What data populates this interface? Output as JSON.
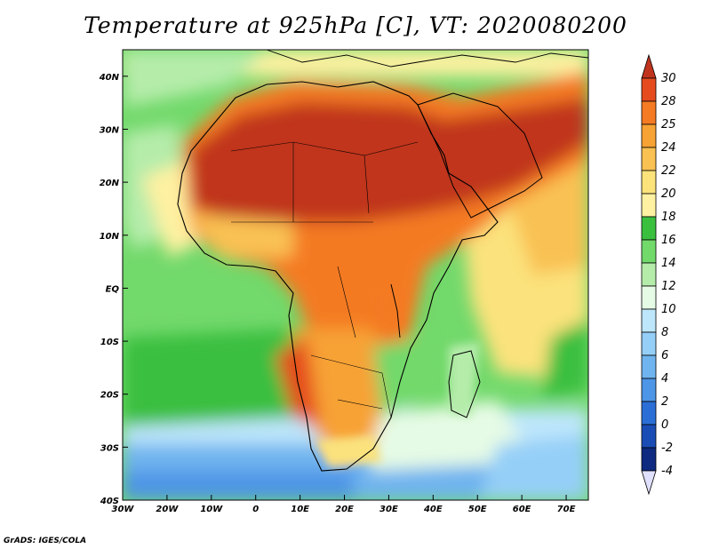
{
  "title": "Temperature at 925hPa [C], VT: 2020080200",
  "footer": "GrADS: IGES/COLA",
  "map": {
    "lon_range": [
      -30,
      75
    ],
    "lat_range": [
      -40,
      45
    ],
    "x_ticks": [
      {
        "lon": -30,
        "label": "30W"
      },
      {
        "lon": -20,
        "label": "20W"
      },
      {
        "lon": -10,
        "label": "10W"
      },
      {
        "lon": 0,
        "label": "0"
      },
      {
        "lon": 10,
        "label": "10E"
      },
      {
        "lon": 20,
        "label": "20E"
      },
      {
        "lon": 30,
        "label": "30E"
      },
      {
        "lon": 40,
        "label": "40E"
      },
      {
        "lon": 50,
        "label": "50E"
      },
      {
        "lon": 60,
        "label": "60E"
      },
      {
        "lon": 70,
        "label": "70E"
      }
    ],
    "y_ticks": [
      {
        "lat": 40,
        "label": "40N"
      },
      {
        "lat": 30,
        "label": "30N"
      },
      {
        "lat": 20,
        "label": "20N"
      },
      {
        "lat": 10,
        "label": "10N"
      },
      {
        "lat": 0,
        "label": "EQ"
      },
      {
        "lat": -10,
        "label": "10S"
      },
      {
        "lat": -20,
        "label": "20S"
      },
      {
        "lat": -30,
        "label": "30S"
      },
      {
        "lat": -40,
        "label": "40S"
      }
    ]
  },
  "colorbar": {
    "labels": [
      "30",
      "28",
      "25",
      "24",
      "22",
      "20",
      "18",
      "16",
      "14",
      "12",
      "10",
      "8",
      "6",
      "4",
      "2",
      "0",
      "-2",
      "-4"
    ],
    "colors": [
      "#c0341e",
      "#e54b1e",
      "#f47a24",
      "#f7a234",
      "#f9c152",
      "#fbe27b",
      "#fef1a1",
      "#3bbf3f",
      "#72d96b",
      "#b5ecaa",
      "#e6fbe5",
      "#bde6fb",
      "#95cff8",
      "#70b4ef",
      "#4d95e6",
      "#2b6fd6",
      "#1a4cb5",
      "#0d2a80",
      "#e0e0ff"
    ]
  }
}
